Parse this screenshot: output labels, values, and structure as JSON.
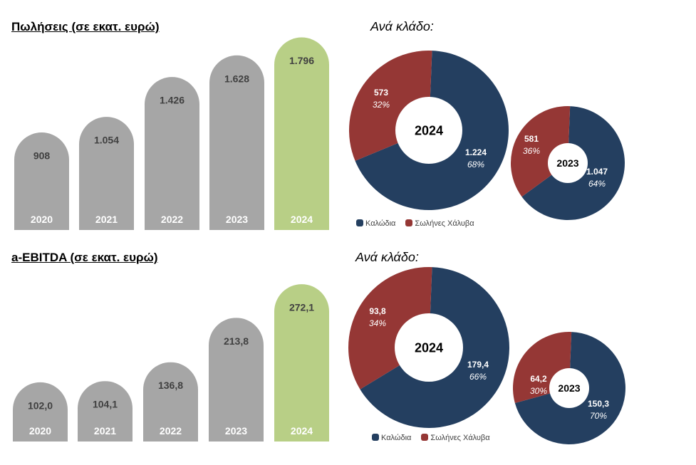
{
  "colors": {
    "gray": "#a6a6a6",
    "highlight": "#b8cf86",
    "navy": "#243f60",
    "red": "#953735"
  },
  "sections": [
    {
      "title": "Πωλήσεις (σε εκατ. ευρώ)",
      "subtitle": "Ανά κλάδο:"
    },
    {
      "title": "a-EBITDA (σε εκατ. ευρώ)",
      "subtitle": "Ανά κλάδο:"
    }
  ],
  "legend": {
    "items": [
      "Καλώδια",
      "Σωλήνες Χάλυβα"
    ]
  },
  "chart_data": [
    {
      "type": "bar",
      "title": "Πωλήσεις (σε εκατ. ευρώ)",
      "categories": [
        "2020",
        "2021",
        "2022",
        "2023",
        "2024"
      ],
      "values": [
        908,
        1054,
        1426,
        1628,
        1796
      ],
      "labels": [
        "908",
        "1.054",
        "1.426",
        "1.628",
        "1.796"
      ],
      "highlight": "2024"
    },
    {
      "type": "pie",
      "title": "2024",
      "slices": [
        {
          "name": "Καλώδια",
          "value": 1224,
          "label": "1.224",
          "pct": "68%"
        },
        {
          "name": "Σωλήνες Χάλυβα",
          "value": 573,
          "label": "573",
          "pct": "32%"
        }
      ]
    },
    {
      "type": "pie",
      "title": "2023",
      "slices": [
        {
          "name": "Καλώδια",
          "value": 1047,
          "label": "1.047",
          "pct": "64%"
        },
        {
          "name": "Σωλήνες Χάλυβα",
          "value": 581,
          "label": "581",
          "pct": "36%"
        }
      ]
    },
    {
      "type": "bar",
      "title": "a-EBITDA (σε εκατ. ευρώ)",
      "categories": [
        "2020",
        "2021",
        "2022",
        "2023",
        "2024"
      ],
      "values": [
        102.0,
        104.1,
        136.8,
        213.8,
        272.1
      ],
      "labels": [
        "102,0",
        "104,1",
        "136,8",
        "213,8",
        "272,1"
      ],
      "highlight": "2024"
    },
    {
      "type": "pie",
      "title": "2024",
      "slices": [
        {
          "name": "Καλώδια",
          "value": 179.4,
          "label": "179,4",
          "pct": "66%"
        },
        {
          "name": "Σωλήνες Χάλυβα",
          "value": 93.8,
          "label": "93,8",
          "pct": "34%"
        }
      ]
    },
    {
      "type": "pie",
      "title": "2023",
      "slices": [
        {
          "name": "Καλώδια",
          "value": 150.3,
          "label": "150,3",
          "pct": "70%"
        },
        {
          "name": "Σωλήνες Χάλυβα",
          "value": 64.2,
          "label": "64,2",
          "pct": "30%"
        }
      ]
    }
  ]
}
